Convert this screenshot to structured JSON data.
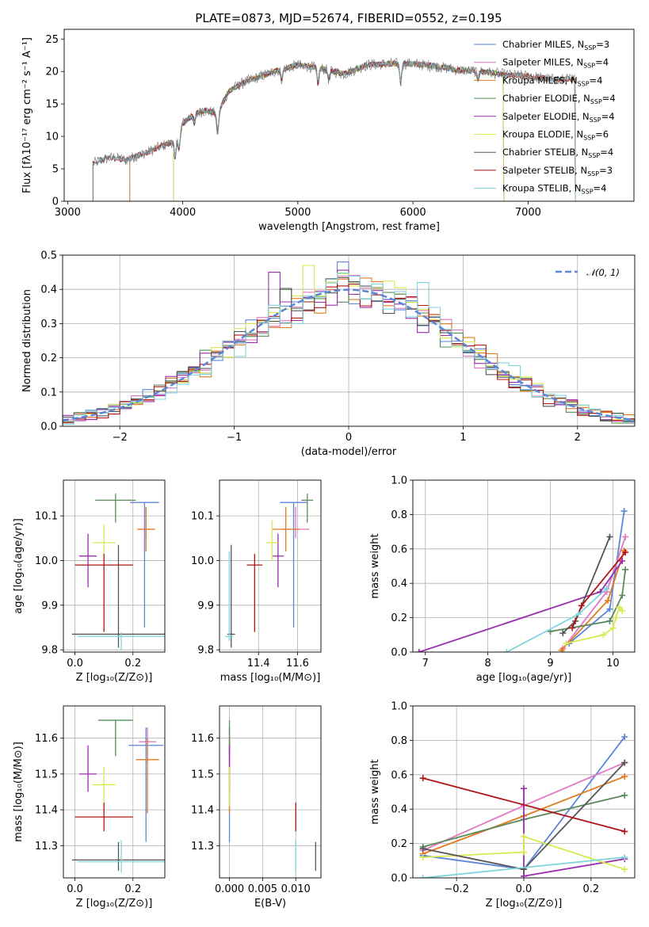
{
  "title": "PLATE=0873, MJD=52674, FIBERID=0552, z=0.195",
  "colors": {
    "Chabrier MILES": "#5b86d8",
    "Salpeter MILES": "#e377c2",
    "Kroupa MILES": "#e07b21",
    "Chabrier ELODIE": "#5a8a5a",
    "Salpeter ELODIE": "#9a2fae",
    "Kroupa ELODIE": "#d8ea50",
    "Chabrier STELIB": "#555555",
    "Salpeter STELIB": "#b01515",
    "Kroupa STELIB": "#7fd5dc"
  },
  "chart_data": [
    {
      "id": "spectrum",
      "type": "line",
      "title": "PLATE=0873, MJD=52674, FIBERID=0552, z=0.195",
      "xlabel": "wavelength [Angstrom, rest frame]",
      "ylabel": "Flux [fλ10⁻¹⁷ erg cm⁻² s⁻¹ A⁻¹]",
      "xlim": [
        2970,
        7920
      ],
      "ylim": [
        0,
        26.5
      ],
      "xticks": [
        3000,
        4000,
        5000,
        6000,
        7000
      ],
      "yticks": [
        0,
        5,
        10,
        15,
        20,
        25
      ],
      "legend_position": "top-right",
      "legend": [
        "Chabrier MILES, N_SSP=3",
        "Salpeter MILES, N_SSP=4",
        "Kroupa MILES, N_SSP=4",
        "Chabrier ELODIE, N_SSP=4",
        "Salpeter ELODIE, N_SSP=4",
        "Kroupa ELODIE, N_SSP=6",
        "Chabrier STELIB, N_SSP=4",
        "Salpeter STELIB, N_SSP=3",
        "Kroupa STELIB, N_SSP=4"
      ],
      "continuum": {
        "x": [
          3220,
          3300,
          3400,
          3500,
          3600,
          3700,
          3800,
          3900,
          3950,
          4000,
          4100,
          4200,
          4300,
          4400,
          4500,
          4600,
          4700,
          4800,
          4900,
          5000,
          5200,
          5400,
          5600,
          5800,
          6000,
          6200,
          6400,
          6600,
          6800,
          7000,
          7200,
          7400
        ],
        "y": [
          5.8,
          6.4,
          6.8,
          6.3,
          7.0,
          7.6,
          8.4,
          9.0,
          9.8,
          12.0,
          13.5,
          14.0,
          13.5,
          17.0,
          18.0,
          18.8,
          19.4,
          20.0,
          20.5,
          21.0,
          20.5,
          19.6,
          21.0,
          21.2,
          21.2,
          20.8,
          20.2,
          20.0,
          19.5,
          19.3,
          18.8,
          18.8
        ]
      },
      "series_ranges": [
        {
          "name": "Chabrier MILES, N_SSP=3",
          "x_start": 3540,
          "x_end": 7410
        },
        {
          "name": "Salpeter MILES, N_SSP=4",
          "x_start": 3540,
          "x_end": 7410
        },
        {
          "name": "Kroupa MILES, N_SSP=4",
          "x_start": 3540,
          "x_end": 7410
        },
        {
          "name": "Chabrier ELODIE, N_SSP=4",
          "x_start": 3920,
          "x_end": 6790
        },
        {
          "name": "Salpeter ELODIE, N_SSP=4",
          "x_start": 3920,
          "x_end": 6790
        },
        {
          "name": "Kroupa ELODIE, N_SSP=6",
          "x_start": 3920,
          "x_end": 6790
        },
        {
          "name": "Chabrier STELIB, N_SSP=4",
          "x_start": 3220,
          "x_end": 7410
        },
        {
          "name": "Salpeter STELIB, N_SSP=3",
          "x_start": 3220,
          "x_end": 7410
        },
        {
          "name": "Kroupa STELIB, N_SSP=4",
          "x_start": 3220,
          "x_end": 7410
        }
      ]
    },
    {
      "id": "residuals",
      "type": "histogram",
      "xlabel": "(data-model)/error",
      "ylabel": "Normed distribution",
      "xlim": [
        -2.5,
        2.5
      ],
      "ylim": [
        0,
        0.5
      ],
      "xticks": [
        -2,
        -1,
        0,
        1,
        2
      ],
      "yticks": [
        0.0,
        0.1,
        0.2,
        0.3,
        0.4,
        0.5
      ],
      "legend_position": "top-right",
      "legend": [
        "𝒩(0, 1)"
      ],
      "bin_width": 0.1,
      "peak_series_order": [
        0,
        1,
        2,
        3,
        4,
        5,
        6,
        7,
        8
      ],
      "notable_peaks": [
        {
          "series": "Kroupa ELODIE, N_SSP=6",
          "x": -0.3,
          "value": 0.47
        },
        {
          "series": "Chabrier MILES, N_SSP=3",
          "x": 0.0,
          "value": 0.48
        },
        {
          "series": "Salpeter ELODIE, N_SSP=4",
          "x": -0.65,
          "value": 0.45
        },
        {
          "series": "Kroupa STELIB, N_SSP=4",
          "x": 0.65,
          "value": 0.42
        }
      ]
    },
    {
      "id": "age-vs-Z",
      "type": "scatter",
      "xlabel": "Z [log₁₀(Z/Z⊙)]",
      "ylabel": "age  [log₁₀(age/yr)]",
      "xlim": [
        -0.04,
        0.31
      ],
      "ylim": [
        9.795,
        10.18
      ],
      "xticks": [
        0.0,
        0.2
      ],
      "yticks": [
        9.8,
        9.9,
        10.0,
        10.1
      ],
      "points": [
        {
          "series": "Chabrier MILES",
          "x": 0.24,
          "y": 10.13,
          "xerr": 0.05,
          "yerr": [
            0.28,
            0.0
          ]
        },
        {
          "series": "Salpeter MILES",
          "x": 0.245,
          "y": 10.07,
          "xerr": 0.03,
          "yerr": [
            0.02,
            0.05
          ]
        },
        {
          "series": "Kroupa MILES",
          "x": 0.245,
          "y": 10.07,
          "xerr": 0.03,
          "yerr": [
            0.05,
            0.05
          ]
        },
        {
          "series": "Chabrier ELODIE",
          "x": 0.14,
          "y": 10.135,
          "xerr": 0.07,
          "yerr": [
            0.05,
            0.015
          ]
        },
        {
          "series": "Salpeter ELODIE",
          "x": 0.045,
          "y": 10.01,
          "xerr": 0.03,
          "yerr": [
            0.07,
            0.05
          ]
        },
        {
          "series": "Kroupa ELODIE",
          "x": 0.1,
          "y": 10.04,
          "xerr": 0.04,
          "yerr": [
            0.04,
            0.04
          ]
        },
        {
          "series": "Chabrier STELIB",
          "x": 0.15,
          "y": 9.835,
          "xerr": 0.16,
          "yerr": [
            0.03,
            0.2
          ]
        },
        {
          "series": "Salpeter STELIB",
          "x": 0.1,
          "y": 9.99,
          "xerr": 0.1,
          "yerr": [
            0.15,
            0.025
          ]
        },
        {
          "series": "Kroupa STELIB",
          "x": 0.16,
          "y": 9.83,
          "xerr": 0.15,
          "yerr": [
            0.03,
            0.01
          ]
        }
      ]
    },
    {
      "id": "age-vs-mass",
      "type": "scatter",
      "xlabel": "mass [log₁₀(M/M⊙)]",
      "ylabel": "",
      "xlim": [
        11.2,
        11.72
      ],
      "ylim": [
        9.795,
        10.18
      ],
      "xticks": [
        11.4,
        11.6
      ],
      "yticks": [
        9.8,
        9.9,
        10.0,
        10.1
      ],
      "points": [
        {
          "series": "Chabrier MILES",
          "x": 11.58,
          "y": 10.13,
          "xerr": 0.07,
          "yerr": [
            0.28,
            0.0
          ]
        },
        {
          "series": "Salpeter MILES",
          "x": 11.59,
          "y": 10.07,
          "xerr": 0.07,
          "yerr": [
            0.02,
            0.05
          ]
        },
        {
          "series": "Kroupa MILES",
          "x": 11.54,
          "y": 10.07,
          "xerr": 0.07,
          "yerr": [
            0.05,
            0.05
          ]
        },
        {
          "series": "Chabrier ELODIE",
          "x": 11.65,
          "y": 10.135,
          "xerr": 0.03,
          "yerr": [
            0.05,
            0.015
          ]
        },
        {
          "series": "Salpeter ELODIE",
          "x": 11.5,
          "y": 10.01,
          "xerr": 0.03,
          "yerr": [
            0.07,
            0.05
          ]
        },
        {
          "series": "Kroupa ELODIE",
          "x": 11.47,
          "y": 10.04,
          "xerr": 0.03,
          "yerr": [
            0.04,
            0.05
          ]
        },
        {
          "series": "Chabrier STELIB",
          "x": 11.26,
          "y": 9.835,
          "xerr": 0.02,
          "yerr": [
            0.03,
            0.2
          ]
        },
        {
          "series": "Salpeter STELIB",
          "x": 11.38,
          "y": 9.99,
          "xerr": 0.04,
          "yerr": [
            0.15,
            0.025
          ]
        },
        {
          "series": "Kroupa STELIB",
          "x": 11.25,
          "y": 9.83,
          "xerr": 0.02,
          "yerr": [
            0.01,
            0.19
          ]
        }
      ]
    },
    {
      "id": "massweight-vs-age",
      "type": "line",
      "xlabel": "age  [log₁₀(age/yr)]",
      "ylabel": "mass weight",
      "xlim": [
        6.8,
        10.35
      ],
      "ylim": [
        0,
        1.0
      ],
      "xticks": [
        7,
        8,
        9,
        10
      ],
      "yticks": [
        0.0,
        0.2,
        0.4,
        0.6,
        0.8,
        1.0
      ],
      "series": [
        {
          "name": "Chabrier MILES",
          "x": [
            9.3,
            9.95,
            10.18
          ],
          "y": [
            0.05,
            0.25,
            0.82
          ]
        },
        {
          "name": "Salpeter MILES",
          "x": [
            9.2,
            9.9,
            10.2
          ],
          "y": [
            0.02,
            0.35,
            0.67
          ]
        },
        {
          "name": "Kroupa MILES",
          "x": [
            9.18,
            9.92,
            10.18
          ],
          "y": [
            0.01,
            0.3,
            0.59
          ]
        },
        {
          "name": "Chabrier ELODIE",
          "x": [
            9.0,
            9.95,
            10.15,
            10.2
          ],
          "y": [
            0.12,
            0.18,
            0.33,
            0.48
          ]
        },
        {
          "name": "Salpeter ELODIE",
          "x": [
            6.9,
            9.8,
            10.15
          ],
          "y": [
            0.0,
            0.35,
            0.53
          ]
        },
        {
          "name": "Kroupa ELODIE",
          "x": [
            9.25,
            9.85,
            10.0,
            10.05,
            10.1,
            10.15
          ],
          "y": [
            0.05,
            0.1,
            0.14,
            0.2,
            0.26,
            0.24
          ]
        },
        {
          "name": "Chabrier STELIB",
          "x": [
            9.2,
            9.4,
            9.95
          ],
          "y": [
            0.11,
            0.18,
            0.67
          ]
        },
        {
          "name": "Salpeter STELIB",
          "x": [
            9.35,
            9.5,
            10.2
          ],
          "y": [
            0.14,
            0.27,
            0.58
          ]
        },
        {
          "name": "Kroupa STELIB",
          "x": [
            8.3,
            9.45,
            9.9
          ],
          "y": [
            0.0,
            0.22,
            0.37
          ]
        }
      ]
    },
    {
      "id": "mass-vs-Z",
      "type": "scatter",
      "xlabel": "Z [log₁₀(Z/Z⊙)]",
      "ylabel": "mass [log₁₀(M/M⊙)]",
      "xlim": [
        -0.04,
        0.31
      ],
      "ylim": [
        11.21,
        11.69
      ],
      "xticks": [
        0.0,
        0.2
      ],
      "yticks": [
        11.3,
        11.4,
        11.5,
        11.6
      ],
      "points": [
        {
          "series": "Chabrier MILES",
          "x": 0.245,
          "y": 11.58,
          "xerr": 0.06,
          "yerr": [
            0.27,
            0.05
          ]
        },
        {
          "series": "Salpeter MILES",
          "x": 0.25,
          "y": 11.59,
          "xerr": 0.03,
          "yerr": [
            0.06,
            0.04
          ]
        },
        {
          "series": "Kroupa MILES",
          "x": 0.25,
          "y": 11.54,
          "xerr": 0.04,
          "yerr": [
            0.15,
            0.06
          ]
        },
        {
          "series": "Chabrier ELODIE",
          "x": 0.14,
          "y": 11.65,
          "xerr": 0.06,
          "yerr": [
            0.1,
            0.0
          ]
        },
        {
          "series": "Salpeter ELODIE",
          "x": 0.045,
          "y": 11.5,
          "xerr": 0.03,
          "yerr": [
            0.05,
            0.08
          ]
        },
        {
          "series": "Kroupa ELODIE",
          "x": 0.1,
          "y": 11.47,
          "xerr": 0.04,
          "yerr": [
            0.06,
            0.05
          ]
        },
        {
          "series": "Chabrier STELIB",
          "x": 0.15,
          "y": 11.26,
          "xerr": 0.16,
          "yerr": [
            0.03,
            0.05
          ]
        },
        {
          "series": "Salpeter STELIB",
          "x": 0.1,
          "y": 11.38,
          "xerr": 0.1,
          "yerr": [
            0.04,
            0.04
          ]
        },
        {
          "series": "Kroupa STELIB",
          "x": 0.16,
          "y": 11.255,
          "xerr": 0.15,
          "yerr": [
            0.03,
            0.06
          ]
        }
      ]
    },
    {
      "id": "mass-vs-ebv",
      "type": "scatter",
      "xlabel": "E(B-V)",
      "ylabel": "",
      "xlim": [
        -0.0015,
        0.0138
      ],
      "ylim": [
        11.21,
        11.69
      ],
      "xticks": [
        0.0,
        0.005,
        0.01
      ],
      "yticks": [
        11.3,
        11.4,
        11.5,
        11.6
      ],
      "points": [
        {
          "series": "Chabrier MILES",
          "x": 0.0,
          "y": 11.58,
          "yerr": [
            0.27,
            0.05
          ]
        },
        {
          "series": "Salpeter MILES",
          "x": 0.0,
          "y": 11.59,
          "yerr": [
            0.06,
            0.04
          ]
        },
        {
          "series": "Kroupa MILES",
          "x": 0.0,
          "y": 11.54,
          "yerr": [
            0.15,
            0.06
          ]
        },
        {
          "series": "Chabrier ELODIE",
          "x": 0.0,
          "y": 11.65,
          "yerr": [
            0.1,
            0.0
          ]
        },
        {
          "series": "Salpeter ELODIE",
          "x": 0.0,
          "y": 11.5,
          "yerr": [
            0.05,
            0.08
          ]
        },
        {
          "series": "Kroupa ELODIE",
          "x": 0.0,
          "y": 11.47,
          "yerr": [
            0.06,
            0.05
          ]
        },
        {
          "series": "Chabrier STELIB",
          "x": 0.013,
          "y": 11.27,
          "yerr": [
            0.04,
            0.04
          ]
        },
        {
          "series": "Salpeter STELIB",
          "x": 0.01,
          "y": 11.38,
          "yerr": [
            0.04,
            0.04
          ]
        },
        {
          "series": "Kroupa STELIB",
          "x": 0.01,
          "y": 11.255,
          "yerr": [
            0.03,
            0.06
          ]
        }
      ]
    },
    {
      "id": "massweight-vs-Z",
      "type": "line",
      "xlabel": "Z [log₁₀(Z/Z⊙)]",
      "ylabel": "mass weight",
      "xlim": [
        -0.33,
        0.33
      ],
      "ylim": [
        0,
        1.0
      ],
      "xticks": [
        -0.2,
        0.0,
        0.2
      ],
      "yticks": [
        0.0,
        0.2,
        0.4,
        0.6,
        0.8,
        1.0
      ],
      "series": [
        {
          "name": "Chabrier MILES",
          "x": [
            -0.3,
            0.0,
            0.3
          ],
          "y": [
            0.13,
            0.05,
            0.82
          ]
        },
        {
          "name": "Salpeter MILES",
          "x": [
            -0.3,
            0.0,
            0.3
          ],
          "y": [
            0.16,
            0.42,
            0.67
          ]
        },
        {
          "name": "Kroupa MILES",
          "x": [
            -0.3,
            0.0,
            0.3
          ],
          "y": [
            0.14,
            0.36,
            0.59
          ]
        },
        {
          "name": "Chabrier ELODIE",
          "x": [
            -0.3,
            0.0,
            0.3
          ],
          "y": [
            0.18,
            0.34,
            0.48
          ]
        },
        {
          "name": "Salpeter ELODIE",
          "x": [
            0.0,
            0.0,
            0.3
          ],
          "y": [
            0.52,
            0.01,
            0.11
          ]
        },
        {
          "name": "Kroupa ELODIE",
          "x": [
            -0.3,
            0.0,
            0.0,
            0.3
          ],
          "y": [
            0.12,
            0.15,
            0.24,
            0.05
          ]
        },
        {
          "name": "Chabrier STELIB",
          "x": [
            -0.3,
            0.0,
            0.3
          ],
          "y": [
            0.17,
            0.05,
            0.67
          ]
        },
        {
          "name": "Salpeter STELIB",
          "x": [
            -0.3,
            0.3
          ],
          "y": [
            0.58,
            0.27
          ]
        },
        {
          "name": "Kroupa STELIB",
          "x": [
            -0.3,
            0.3
          ],
          "y": [
            0.0,
            0.12
          ]
        }
      ]
    }
  ]
}
